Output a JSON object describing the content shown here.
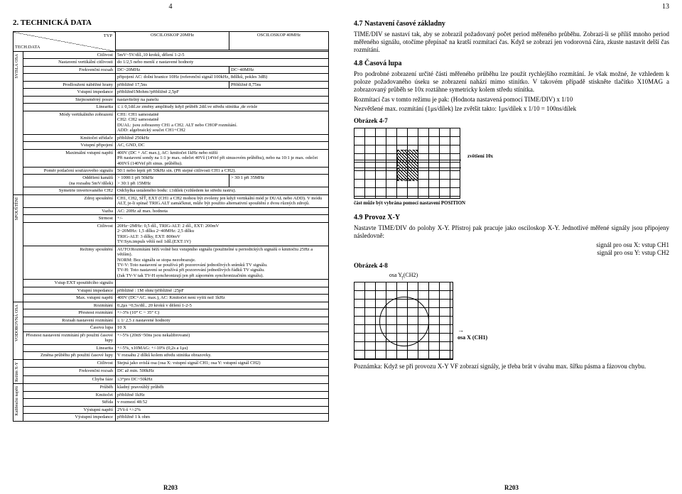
{
  "left": {
    "pageTop": "4",
    "title": "2. TECHNICKÁ DATA",
    "footer": "R203",
    "table": {
      "typLabel": "TYP",
      "techDataLabel": "TECH.DATA",
      "col20": "OSCILOSKOP 20MHz",
      "col40": "OSCILOSKOP 40MHz",
      "groups": [
        {
          "name": "SVISLÁ OSA",
          "rows": [
            [
              "Citlivost",
              "5mV~5V/díl.,10 kroků, dělení 1-2-5"
            ],
            [
              "Nastavení vertikální citlivosti",
              "do 1/2,5 nebo menší z nastavené hodnoty"
            ],
            [
              "Frekvenční rozsah",
              "DC~20MHz",
              "DC~40MHz"
            ],
            [
              "",
              "připojení AC: dolní hranice 10Hz (referenční signál 100kHz, 8dílků, pokles 3dB)"
            ],
            [
              "Prodloužení náběžné hrany",
              "přibližně 17,5ns",
              "Přibližně 8,75ns"
            ],
            [
              "Vstupní impedance",
              "přibližně1Mohm//přibližně 2,5pF"
            ],
            [
              "Stejnosměrný posuv",
              "nastavitelný na panelu"
            ],
            [
              "Linearita",
              "≤ ± 0,1díl.ze změny amplitudy když průběh 2díl.ve středu stinítka ,de svisle"
            ],
            [
              "Módy vertikálního zobrazení",
              "CH1: CH1 samostatně\nCH2: CH2 samostatně\nDUAL: jsou zobrazeny CH1 a CH2.  ALT nebo CHOP rozmítání.\nADD: algebraický součet CH1+CH2"
            ],
            [
              "Kmitočet střídače",
              "přibližně 250kHz"
            ],
            [
              "Vstupní připojení",
              "AC, GND, DC"
            ],
            [
              "Maximální vstupní napětí",
              "400V (DC + AC max.), AC: kmitočet 1kHz nebo nižší\nPři nastavení sondy na 1:1 je max. odečet 40Vš (14Vef při sinusovém průběhu), nebo na 10:1 je max. odečet 400Vš (140Vef při sinus. průběhu)."
            ],
            [
              "Poměr potlačení soufázového signálu",
              "50:1 nebo lepší při 50kHz sin. (Při stejné citlivosti CH1 a CH2)."
            ],
            [
              "Oddělení kanálů\n(na rozsahu 5mV/dílek)",
              "> 1000:1  při 50kHz\n> 30:1   při 15MHz",
              "> 30:1  při 35MHz"
            ],
            [
              "Symetrie invertovaného CH2",
              "Odchylka ustáleného bodu: ≤1dílek (vzhledem ke středu rastru)."
            ]
          ]
        },
        {
          "name": "SPOUŠTĚNÍ",
          "rows": [
            [
              "Zdroj spouštění",
              "CH1, CH2, SÍŤ, EXT (CH1 a CH2 mohou být zvoleny jen když vertikální mód je DUAL nebo ADD). V módu ALT, je-li spínač TRIG.ALT zamáčknut, může být použito alternativní spouštění z dvou různých zdrojů."
            ],
            [
              "Vazba",
              "AC: 20Hz až max. hodnota"
            ],
            [
              "Strmost",
              "+/-"
            ],
            [
              "Citlivost",
              "20Hz~2MHz: 0,5 díl., TRIG-ALT: 2 díl., EXT: 200mV\n2~20MHz: 1,5 dílku          2~40MHz: 2,5 dílku\nTRIG-ALT: 3 dílky, EXT: 800mV\nTV:Syn.impuls větší než 1díl.(EXT:1V)"
            ],
            [
              "Režimy spouštění",
              "AUTO:Rozmítání běží volně bez vstupního signálu (použitelné u periodických signálů o kmitočtu 25Hz a větším).\nNORM: Bez signálu se stopa nezobrazuje.\nTV-V: Toto nastavení se používá při pozorování jednotlivých snímků TV signálu.\nTV-H: Toto nastavení se používá při pozorování jednotlivých řádků TV signálu.\n(Jak TV-V tak TV-H synchronizují jen při záporném synchronizačním signálu)."
            ],
            [
              "Vstup EXT spouštěcího signálu",
              ""
            ],
            [
              "Vstupní impedance",
              "přibližně : 1M ohm//přibližně :25pF"
            ],
            [
              "Max. vstupní napětí",
              "400V (DC+AC. max.), AC: Kmitočet není vyšší než 1kHz"
            ]
          ]
        },
        {
          "name": "VODOROVNÁ OSA",
          "rows": [
            [
              "Rozmítání",
              "0,2μs ~0,5s/díl., 20 kroků v dělení 1-2-5"
            ],
            [
              "Přesnost rozmítání",
              "+/-3% (10° C ~ 35° C)"
            ],
            [
              "Rozsah nastavení rozmítání",
              "≤ 1/ 2,5 z nastavené hodnoty"
            ],
            [
              "Časová lupa",
              "10 X"
            ],
            [
              "Přesnost nastavení rozmítání při použití časové lupy",
              "+/-5% (20nS~50ns jsou nekalibrované)"
            ],
            [
              "Linearita",
              "+/-5%, x10MAG: +/-10% (0,2s a 1μs)"
            ],
            [
              "Změna průběhu při použití časové lupy",
              "V rozsahu 2 dílků kolem středu stinítka obrazovky."
            ]
          ]
        },
        {
          "name": "Režim X-Y",
          "rows": [
            [
              "Citlivost",
              "Stejná jako svislá osa (osa X: vstupní signál CH1;  osa Y: vstupní signál CH2)"
            ],
            [
              "Frekvenční rozsah",
              "DC až min. 500kHz"
            ],
            [
              "Chyba fáze",
              "≤3°pro DC~50kHz"
            ]
          ]
        },
        {
          "name": "Kalibrační napětí",
          "rows": [
            [
              "Průběh",
              "kladný pravoúhlý průběh"
            ],
            [
              "Kmitočet",
              "přibližně 1kHz"
            ],
            [
              "Střída",
              "v rozmezí 48:52"
            ],
            [
              "Výstupní napětí",
              "2Vš-š  +/-2%"
            ],
            [
              "Výstupní impedance",
              "přibližně 1 k ohm"
            ]
          ]
        }
      ]
    }
  },
  "right": {
    "pageTop": "13",
    "footer": "R203",
    "s47": {
      "title": "4.7   Nastavení časové základny",
      "p1": "TIME/DIV se nastaví tak, aby se zobrazil požadovaný počet period měřeného průběhu. Zobrazí-li se příliš mnoho period měřeného signálu, otočíme přepínač na kratší rozmítací čas. Když se zobrazí jen vodorovná čára, zkuste nastavit delší čas rozmítání."
    },
    "s48": {
      "title": "4.8   Časová lupa",
      "p1": "Pro podrobné zobrazení určité části měřeného průběhu lze použít rychlejšího rozmítání. Je však možné, že vzhledem k poloze požadovaného úseku se zobrazení nahází mimo stinítko. V takovém případě stiskněte tlačítko X10MAG a zobrazovaný průběh se 10x roztáhne symetricky kolem středu stínítka.",
      "p2": "Rozmítací čas v tomto režimu je pak:            (Hodnota nastavená pomocí TIME/DIV) x 1/10",
      "p3": "Nezvětšené max. rozmítání (1μs/dílek) lze zvětšit takto:            1μs/dílek x 1/10 = 100ns/dílek",
      "obr": "Obrázek 4-7",
      "cap1": "zvětšení 10x",
      "cap2": "část může být vybrána pomocí nastavení POSITION"
    },
    "s49": {
      "title": "4.9   Provoz X-Y",
      "p1": "Nastavte TIME/DIV do polohy X-Y. Přístroj pak pracuje jako osciloskop X-Y. Jednotlivé měřené signály jsou připojeny následovně:",
      "sig1": "signál pro osu X: vstup CH1",
      "sig2": "signál pro osu Y: vstup CH2",
      "obr": "Obrázek 4-8",
      "axisY": "osa Y (CH2)",
      "axisX": "osa X (CH1)",
      "note": "Poznámka: Když se při provozu X-Y VF zobrazí signály, je třeba brát v úvahu max. šířku pásma a fázovou chybu."
    }
  }
}
